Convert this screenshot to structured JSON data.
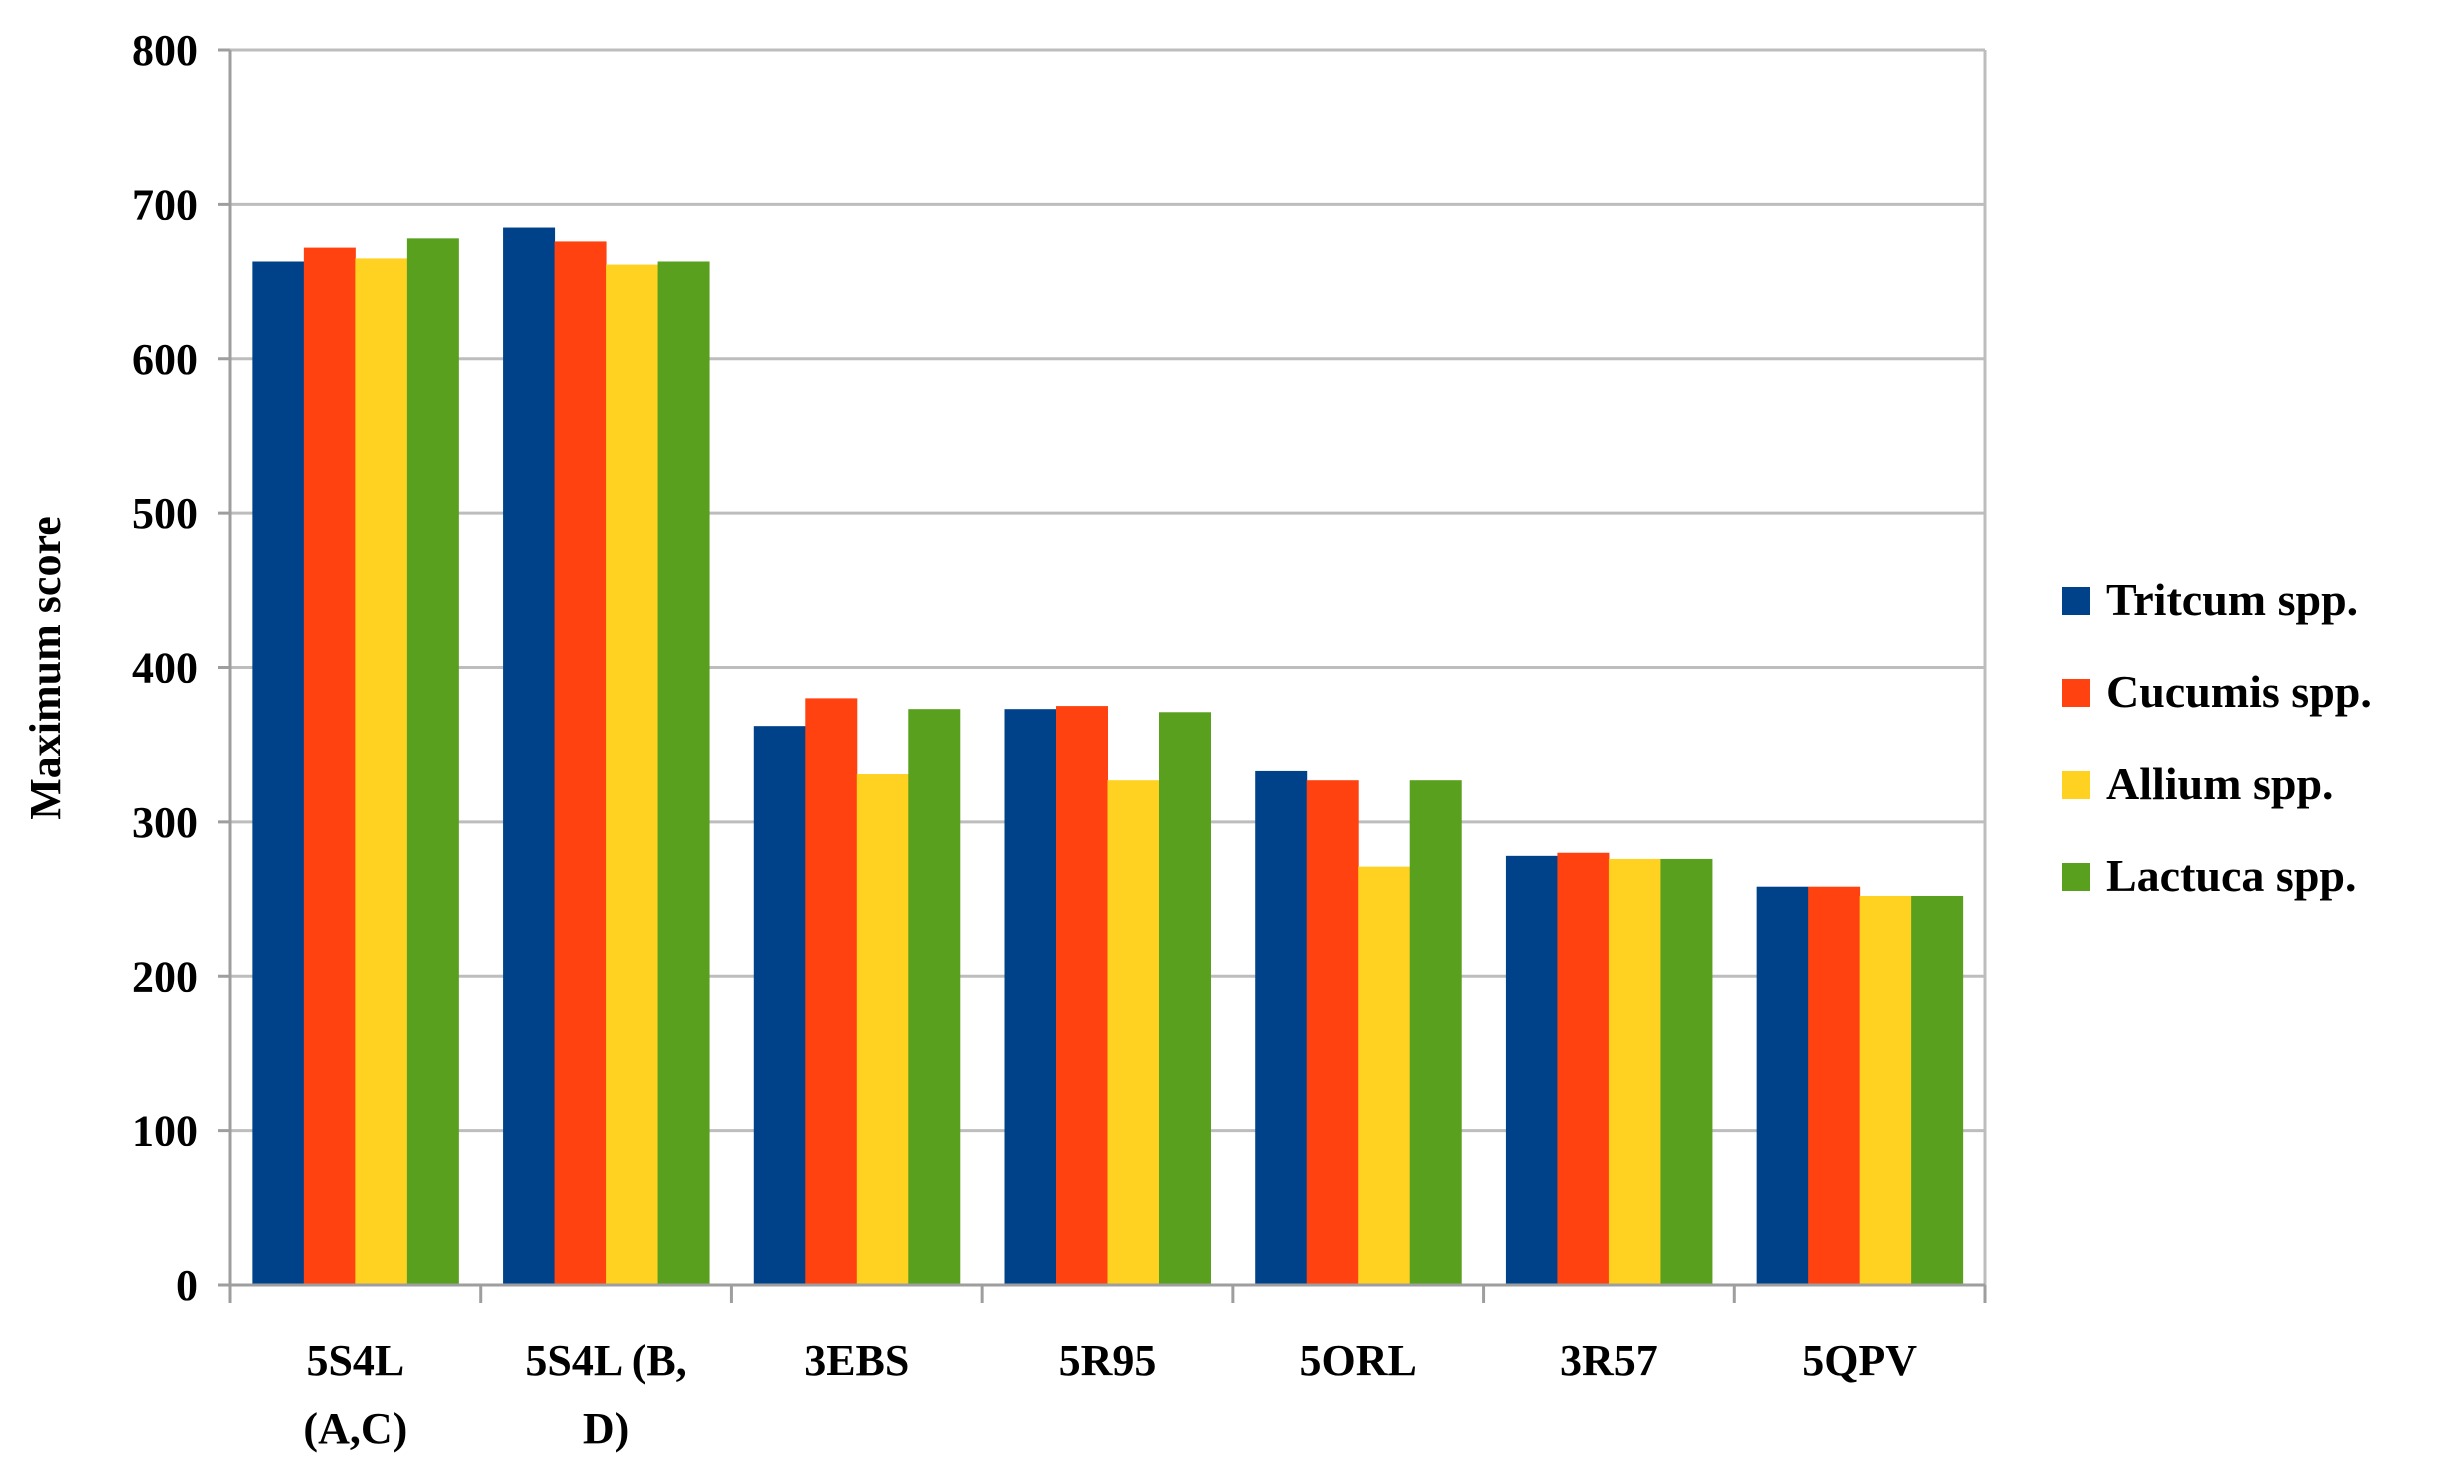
{
  "chart_data": {
    "type": "bar",
    "title": "",
    "xlabel": "",
    "ylabel": "Maximum score",
    "ylim": [
      0,
      800
    ],
    "yticks": [
      0,
      100,
      200,
      300,
      400,
      500,
      600,
      700,
      800
    ],
    "grid": true,
    "legend_position": "right",
    "categories": [
      [
        "5S4L",
        "(A,C)"
      ],
      [
        "5S4L (B,",
        "D)"
      ],
      [
        "3EBS"
      ],
      [
        "5R95"
      ],
      [
        "5ORL"
      ],
      [
        "3R57"
      ],
      [
        "5QPV"
      ]
    ],
    "series": [
      {
        "name": "Tritcum spp.",
        "color": "#00428A",
        "values": [
          663,
          685,
          362,
          373,
          333,
          278,
          258
        ]
      },
      {
        "name": "Cucumis spp.",
        "color": "#FF4210",
        "values": [
          672,
          676,
          380,
          375,
          327,
          280,
          258
        ]
      },
      {
        "name": "Allium spp.",
        "color": "#FFD221",
        "values": [
          665,
          661,
          331,
          327,
          271,
          276,
          252
        ]
      },
      {
        "name": "Lactuca spp.",
        "color": "#58A01E",
        "values": [
          678,
          663,
          373,
          371,
          327,
          276,
          252
        ]
      }
    ]
  }
}
